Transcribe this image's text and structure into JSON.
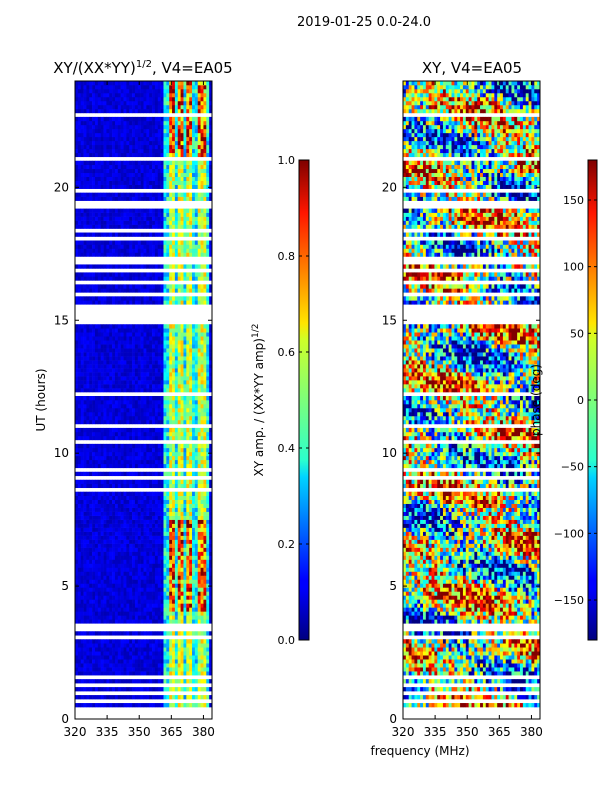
{
  "suptitle": "2019-01-25 0.0-24.0",
  "xlabel_shared": "frequency (MHz)",
  "chart_data": [
    {
      "type": "heatmap",
      "title_main": "XY/(XX*YY)",
      "title_sup": "1/2",
      "title_rest": ", V4=EA05",
      "ylabel": "UT (hours)",
      "xlim": [
        320,
        384
      ],
      "ylim": [
        0,
        24
      ],
      "xticks": [
        "320",
        "335",
        "350",
        "365",
        "380"
      ],
      "xtick_values": [
        320,
        335,
        350,
        365,
        380
      ],
      "yticks": [
        "0",
        "5",
        "10",
        "15",
        "20"
      ],
      "ytick_values": [
        0,
        5,
        10,
        15,
        20
      ],
      "colorbar": {
        "label_main": "XY amp. / (XX*YY amp)",
        "label_sup": "1/2",
        "vmin": 0.0,
        "vmax": 1.0,
        "ticks": [
          "0.0",
          "0.2",
          "0.4",
          "0.6",
          "0.8",
          "1.0"
        ],
        "tick_values": [
          0.0,
          0.2,
          0.4,
          0.6,
          0.8,
          1.0
        ]
      },
      "blank_rows_ut": [
        [
          0.0,
          0.4
        ],
        [
          0.55,
          0.7
        ],
        [
          0.9,
          1.0
        ],
        [
          1.15,
          1.3
        ],
        [
          1.45,
          1.6
        ],
        [
          3.0,
          3.15
        ],
        [
          3.35,
          3.6
        ],
        [
          5.65,
          5.75
        ],
        [
          6.1,
          6.2
        ],
        [
          7.45,
          7.55
        ],
        [
          7.75,
          7.85
        ],
        [
          8.55,
          8.7
        ],
        [
          9.05,
          9.15
        ],
        [
          9.35,
          9.45
        ],
        [
          10.4,
          10.5
        ],
        [
          11.0,
          11.15
        ],
        [
          12.2,
          12.3
        ],
        [
          14.9,
          15.65
        ],
        [
          15.95,
          16.0
        ],
        [
          16.15,
          16.25
        ],
        [
          16.4,
          16.5
        ],
        [
          16.6,
          16.7
        ],
        [
          16.85,
          16.95
        ],
        [
          17.1,
          17.2
        ],
        [
          17.3,
          17.4
        ],
        [
          17.55,
          17.6
        ],
        [
          17.8,
          17.9
        ],
        [
          18.05,
          18.15
        ],
        [
          18.3,
          18.4
        ],
        [
          18.7,
          18.8
        ],
        [
          19.2,
          19.45
        ],
        [
          19.6,
          19.7
        ],
        [
          19.85,
          19.95
        ],
        [
          20.1,
          20.15
        ],
        [
          21.0,
          21.1
        ],
        [
          22.65,
          22.75
        ],
        [
          23.2,
          23.3
        ]
      ],
      "hot_channel_mhz": [
        [
          363.5,
          366.5
        ],
        [
          368.5,
          371.0
        ],
        [
          372.5,
          375.0
        ],
        [
          377.0,
          381.5
        ]
      ],
      "data_segments_ut": [
        [
          0.0,
          3.0
        ],
        [
          3.6,
          15.0
        ],
        [
          15.7,
          24.0
        ]
      ]
    },
    {
      "type": "heatmap",
      "title": "XY, V4=EA05",
      "xlim": [
        320,
        384
      ],
      "ylim": [
        0,
        24
      ],
      "xticks": [
        "320",
        "335",
        "350",
        "365",
        "380"
      ],
      "xtick_values": [
        320,
        335,
        350,
        365,
        380
      ],
      "yticks": [
        "0",
        "5",
        "10",
        "15",
        "20"
      ],
      "ytick_values": [
        0,
        5,
        10,
        15,
        20
      ],
      "colorbar": {
        "label": "phase (deg)",
        "vmin": -180,
        "vmax": 180,
        "ticks": [
          "−150",
          "−100",
          "−50",
          "0",
          "50",
          "100",
          "150"
        ],
        "tick_values": [
          -150,
          -100,
          -50,
          0,
          50,
          100,
          150
        ]
      },
      "blank_rows_ut": [
        [
          0.0,
          0.4
        ],
        [
          0.55,
          0.7
        ],
        [
          0.9,
          1.0
        ],
        [
          1.15,
          1.3
        ],
        [
          1.45,
          1.6
        ],
        [
          3.0,
          3.15
        ],
        [
          3.35,
          3.6
        ],
        [
          5.65,
          5.75
        ],
        [
          6.1,
          6.2
        ],
        [
          7.45,
          7.55
        ],
        [
          7.75,
          7.85
        ],
        [
          8.55,
          8.7
        ],
        [
          9.05,
          9.15
        ],
        [
          9.35,
          9.45
        ],
        [
          10.4,
          10.5
        ],
        [
          11.0,
          11.15
        ],
        [
          12.2,
          12.3
        ],
        [
          14.9,
          15.65
        ],
        [
          15.95,
          16.0
        ],
        [
          16.15,
          16.25
        ],
        [
          16.4,
          16.5
        ],
        [
          16.6,
          16.7
        ],
        [
          16.85,
          16.95
        ],
        [
          17.1,
          17.2
        ],
        [
          17.3,
          17.4
        ],
        [
          17.55,
          17.6
        ],
        [
          17.8,
          17.9
        ],
        [
          18.05,
          18.15
        ],
        [
          18.3,
          18.4
        ],
        [
          18.7,
          18.8
        ],
        [
          19.2,
          19.45
        ],
        [
          19.6,
          19.7
        ],
        [
          19.85,
          19.95
        ],
        [
          20.1,
          20.15
        ],
        [
          21.0,
          21.1
        ],
        [
          22.65,
          22.75
        ],
        [
          23.2,
          23.3
        ]
      ]
    }
  ]
}
